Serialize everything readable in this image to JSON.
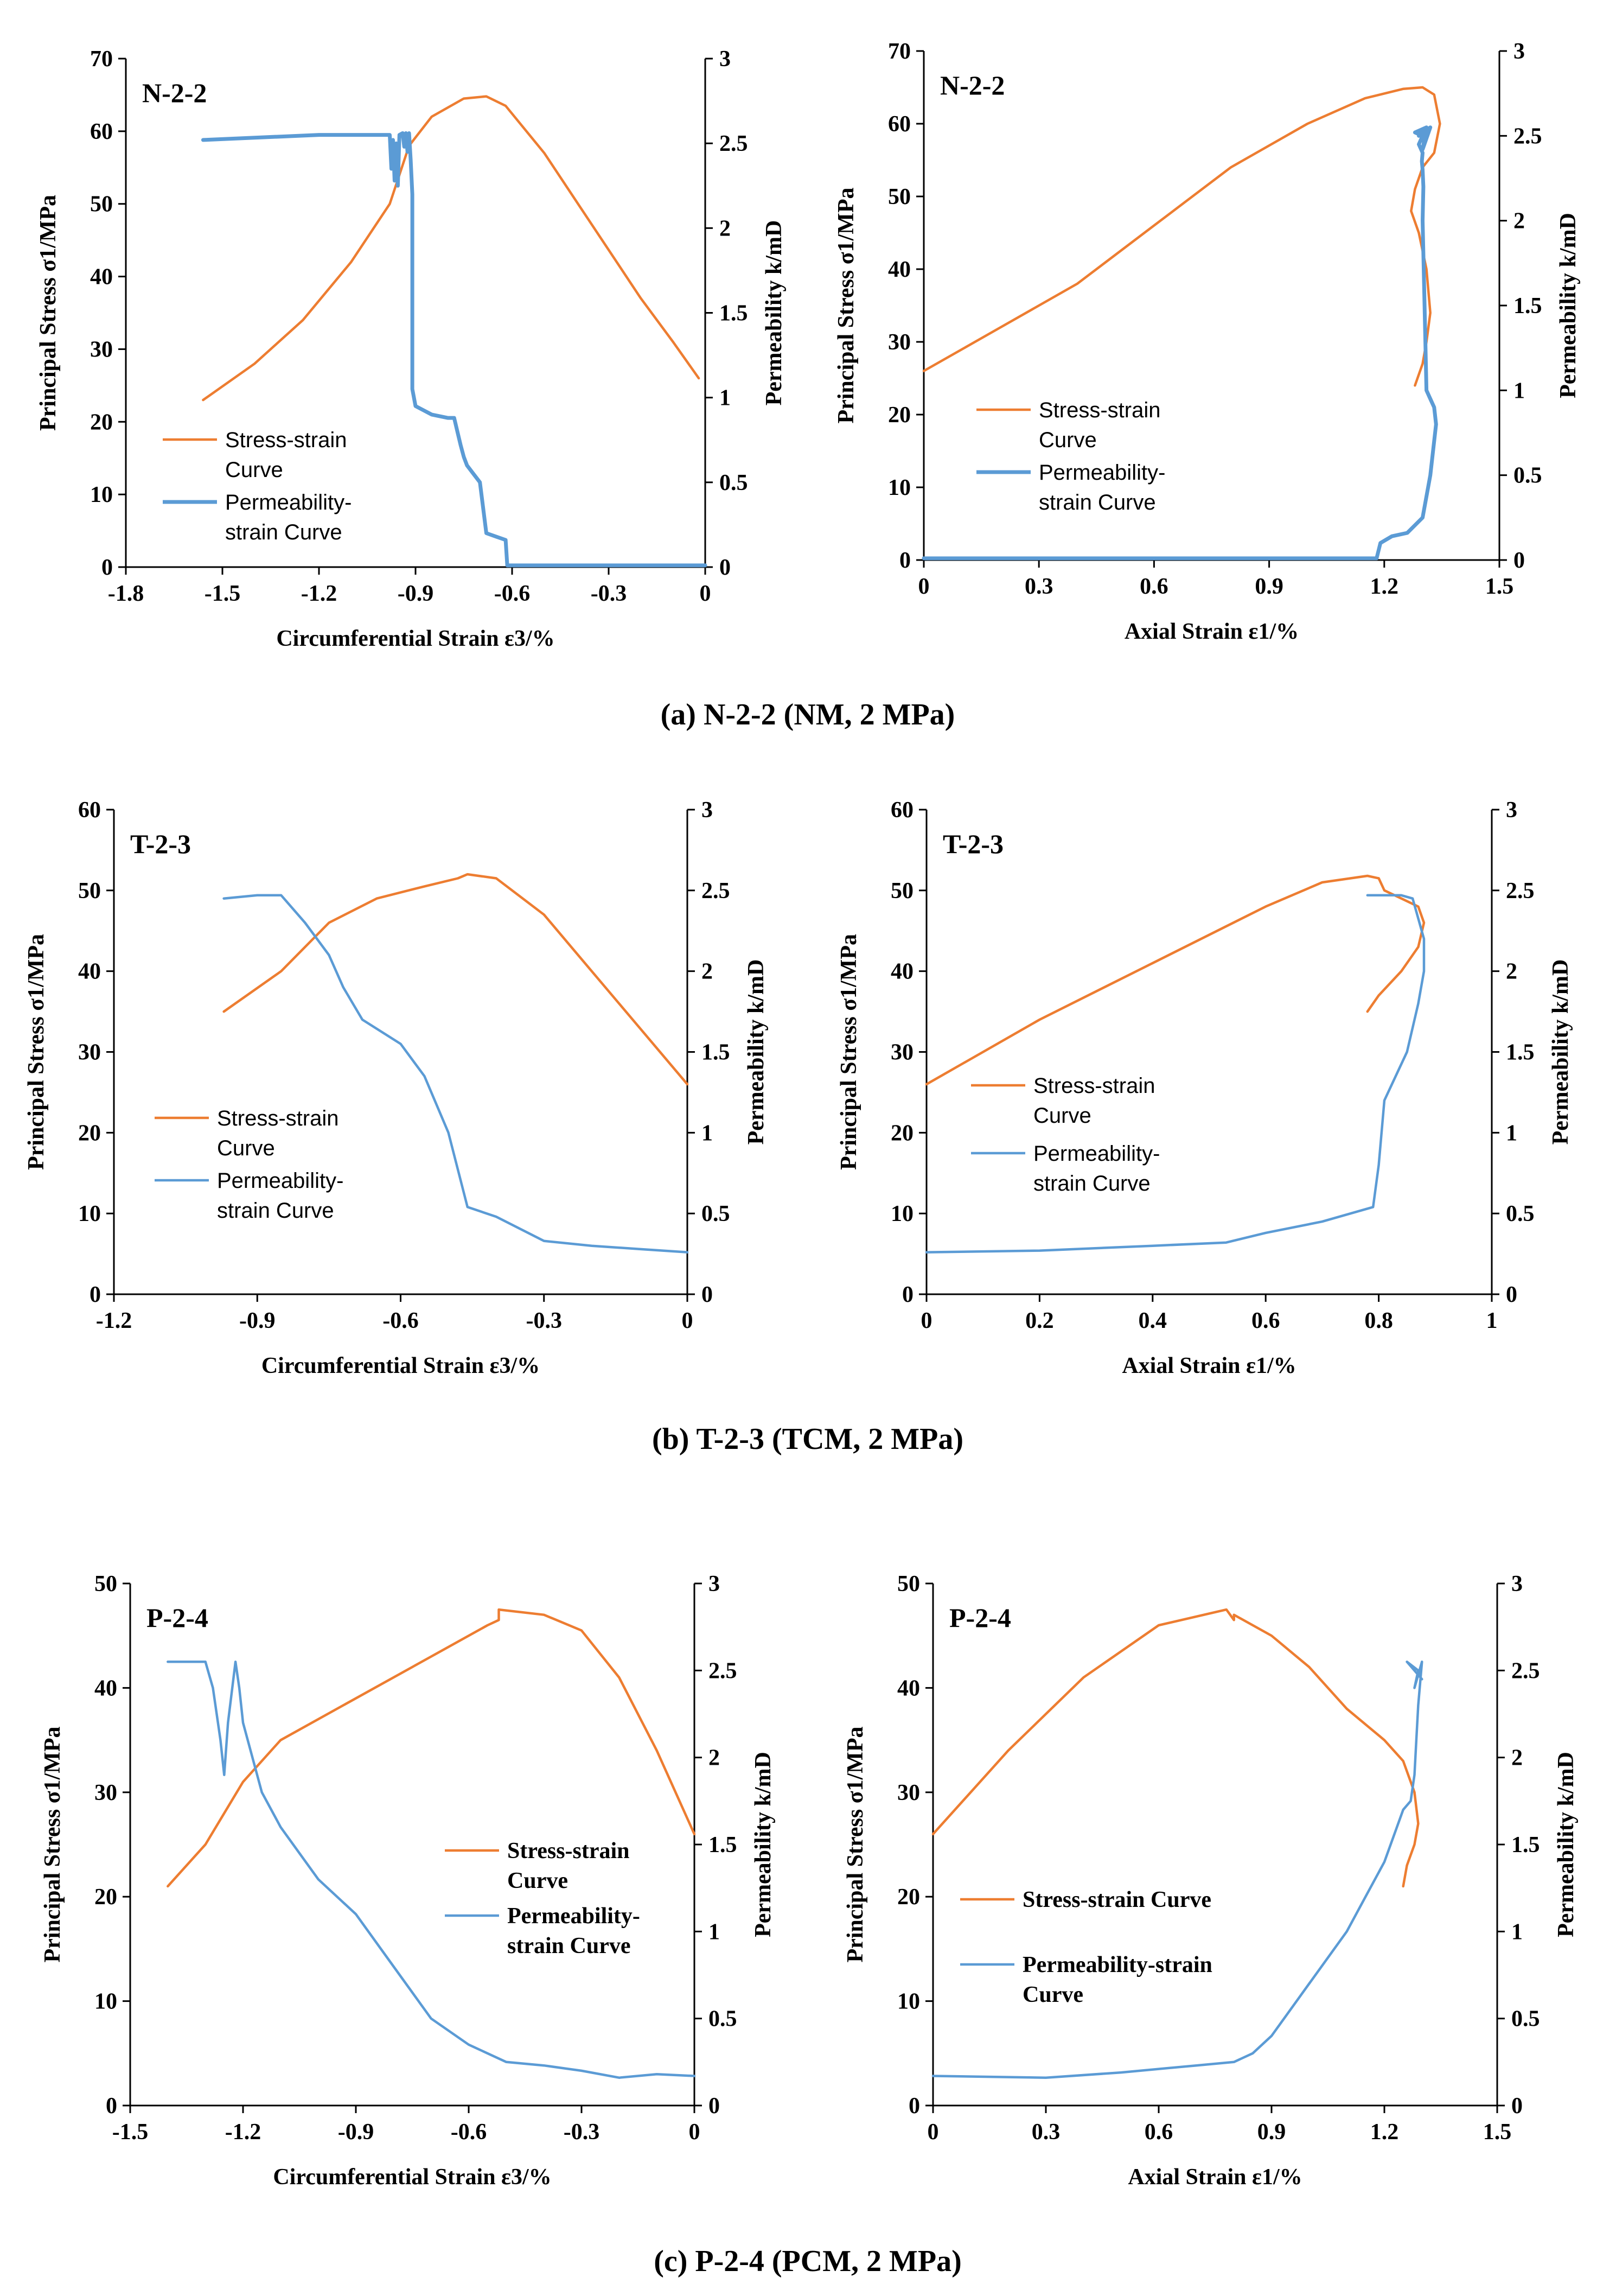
{
  "chart_data": [
    {
      "type": "line",
      "title": "N-2-2",
      "xlabel": "Circumferential Strain ε3/%",
      "ylabel": "Principal Stress σ1/MPa",
      "y2label": "Permeability k/mD",
      "xlim": [
        -1.8,
        0
      ],
      "ylim": [
        0,
        70
      ],
      "y2lim": [
        0,
        3
      ],
      "xticks": [
        -1.8,
        -1.5,
        -1.2,
        -0.9,
        -0.6,
        -0.3,
        0
      ],
      "xtick_labels": [
        "-1.8",
        "-1.5",
        "-1.2",
        "-0.9",
        "-0.6",
        "-0.3",
        "0"
      ],
      "yticks": [
        0,
        10,
        20,
        30,
        40,
        50,
        60,
        70
      ],
      "y2ticks": [
        0,
        0.5,
        1,
        1.5,
        2,
        2.5,
        3
      ],
      "legend_style": "sans",
      "series": [
        {
          "name": "Stress-strain Curve",
          "legend_lines": [
            "Stress-strain",
            "Curve"
          ],
          "axis": "left",
          "color": "#ED7D31",
          "x": [
            -1.56,
            -1.4,
            -1.25,
            -1.1,
            -0.98,
            -0.92,
            -0.85,
            -0.75,
            -0.68,
            -0.62,
            -0.5,
            -0.35,
            -0.2,
            -0.1,
            -0.02
          ],
          "y": [
            23,
            28,
            34,
            42,
            50,
            58,
            62,
            64.5,
            64.8,
            63.5,
            57,
            47,
            37,
            31,
            26
          ]
        },
        {
          "name": "Permeability-strain Curve",
          "legend_lines": [
            "Permeability-",
            "strain Curve"
          ],
          "axis": "right",
          "color": "#5B9BD5",
          "bold": true,
          "x": [
            -1.56,
            -1.2,
            -0.98,
            -0.975,
            -0.97,
            -0.965,
            -0.96,
            -0.955,
            -0.95,
            -0.94,
            -0.935,
            -0.93,
            -0.925,
            -0.92,
            -0.915,
            -0.91,
            -0.91,
            -0.9,
            -0.85,
            -0.8,
            -0.78,
            -0.77,
            -0.76,
            -0.75,
            -0.74,
            -0.72,
            -0.7,
            -0.68,
            -0.65,
            -0.62,
            -0.615,
            -0.5,
            -0.3,
            -0.1,
            0
          ],
          "y": [
            2.52,
            2.55,
            2.55,
            2.35,
            2.52,
            2.28,
            2.5,
            2.25,
            2.55,
            2.56,
            2.48,
            2.56,
            2.45,
            2.56,
            2.4,
            2.2,
            1.05,
            0.95,
            0.9,
            0.88,
            0.88,
            0.8,
            0.72,
            0.65,
            0.6,
            0.55,
            0.5,
            0.2,
            0.18,
            0.16,
            0.01,
            0.01,
            0.01,
            0.01,
            0.01
          ]
        }
      ]
    },
    {
      "type": "line",
      "title": "N-2-2",
      "xlabel": "Axial Strain ε1/%",
      "ylabel": "Principal Stress σ1/MPa",
      "y2label": "Permeability k/mD",
      "xlim": [
        0,
        1.5
      ],
      "ylim": [
        0,
        70
      ],
      "y2lim": [
        0,
        3
      ],
      "xticks": [
        0,
        0.3,
        0.6,
        0.9,
        1.2,
        1.5
      ],
      "xtick_labels": [
        "0",
        "0.3",
        "0.6",
        "0.9",
        "1.2",
        "1.5"
      ],
      "yticks": [
        0,
        10,
        20,
        30,
        40,
        50,
        60,
        70
      ],
      "y2ticks": [
        0,
        0.5,
        1,
        1.5,
        2,
        2.5,
        3
      ],
      "legend_style": "sans",
      "series": [
        {
          "name": "Stress-strain Curve",
          "legend_lines": [
            "Stress-strain",
            "Curve"
          ],
          "axis": "left",
          "color": "#ED7D31",
          "x": [
            0,
            0.2,
            0.4,
            0.6,
            0.8,
            1.0,
            1.15,
            1.25,
            1.3,
            1.33,
            1.345,
            1.33,
            1.3,
            1.28,
            1.27,
            1.29,
            1.31,
            1.32,
            1.31,
            1.3,
            1.28
          ],
          "y": [
            26,
            32,
            38,
            46,
            54,
            60,
            63.5,
            64.8,
            65,
            64,
            60,
            56,
            54,
            51,
            48,
            45,
            40,
            34,
            30,
            27,
            24
          ]
        },
        {
          "name": "Permeability-strain Curve",
          "legend_lines": [
            "Permeability-",
            "strain Curve"
          ],
          "axis": "right",
          "color": "#5B9BD5",
          "bold": true,
          "x": [
            0,
            0.5,
            1.0,
            1.18,
            1.19,
            1.22,
            1.26,
            1.3,
            1.32,
            1.335,
            1.33,
            1.32,
            1.31,
            1.305,
            1.3,
            1.302,
            1.3,
            1.298,
            1.3,
            1.29,
            1.3,
            1.28,
            1.31,
            1.29,
            1.32,
            1.3,
            1.31
          ],
          "y": [
            0.01,
            0.01,
            0.01,
            0.01,
            0.1,
            0.14,
            0.16,
            0.25,
            0.5,
            0.8,
            0.9,
            0.95,
            1.0,
            1.5,
            2.0,
            2.2,
            2.3,
            2.35,
            2.4,
            2.45,
            2.5,
            2.52,
            2.55,
            2.5,
            2.55,
            2.42,
            2.55
          ]
        }
      ]
    },
    {
      "type": "line",
      "title": "T-2-3",
      "xlabel": "Circumferential Strain ε3/%",
      "ylabel": "Principal Stress σ1/MPa",
      "y2label": "Permeability k/mD",
      "xlim": [
        -1.2,
        0
      ],
      "ylim": [
        0,
        60
      ],
      "y2lim": [
        0,
        3
      ],
      "xticks": [
        -1.2,
        -0.9,
        -0.6,
        -0.3,
        0
      ],
      "xtick_labels": [
        "-1.2",
        "-0.9",
        "-0.6",
        "-0.3",
        "0"
      ],
      "yticks": [
        0,
        10,
        20,
        30,
        40,
        50,
        60
      ],
      "y2ticks": [
        0,
        0.5,
        1,
        1.5,
        2,
        2.5,
        3
      ],
      "legend_style": "sans",
      "series": [
        {
          "name": "Stress-strain Curve",
          "legend_lines": [
            "Stress-strain",
            "Curve"
          ],
          "axis": "left",
          "color": "#ED7D31",
          "x": [
            -0.97,
            -0.85,
            -0.75,
            -0.65,
            -0.55,
            -0.48,
            -0.46,
            -0.4,
            -0.3,
            -0.2,
            -0.1,
            0
          ],
          "y": [
            35,
            40,
            46,
            49,
            50.5,
            51.5,
            52,
            51.5,
            47,
            40,
            33,
            26
          ]
        },
        {
          "name": "Permeability-strain Curve",
          "legend_lines": [
            "Permeability-",
            "strain Curve"
          ],
          "axis": "right",
          "color": "#5B9BD5",
          "x": [
            -0.97,
            -0.9,
            -0.85,
            -0.8,
            -0.75,
            -0.72,
            -0.68,
            -0.6,
            -0.55,
            -0.5,
            -0.46,
            -0.4,
            -0.3,
            -0.2,
            -0.1,
            0
          ],
          "y": [
            2.45,
            2.47,
            2.47,
            2.3,
            2.1,
            1.9,
            1.7,
            1.55,
            1.35,
            1.0,
            0.54,
            0.48,
            0.33,
            0.3,
            0.28,
            0.26
          ]
        }
      ]
    },
    {
      "type": "line",
      "title": "T-2-3",
      "xlabel": "Axial Strain ε1/%",
      "ylabel": "Principal Stress σ1/MPa",
      "y2label": "Permeability k/mD",
      "xlim": [
        0,
        1
      ],
      "ylim": [
        0,
        60
      ],
      "y2lim": [
        0,
        3
      ],
      "xticks": [
        0,
        0.2,
        0.4,
        0.6,
        0.8,
        1
      ],
      "xtick_labels": [
        "0",
        "0.2",
        "0.4",
        "0.6",
        "0.8",
        "1"
      ],
      "yticks": [
        0,
        10,
        20,
        30,
        40,
        50,
        60
      ],
      "y2ticks": [
        0,
        0.5,
        1,
        1.5,
        2,
        2.5,
        3
      ],
      "legend_style": "sans",
      "series": [
        {
          "name": "Stress-strain Curve",
          "legend_lines": [
            "Stress-strain",
            "Curve"
          ],
          "axis": "left",
          "color": "#ED7D31",
          "x": [
            0,
            0.2,
            0.4,
            0.6,
            0.7,
            0.78,
            0.8,
            0.81,
            0.84,
            0.87,
            0.88,
            0.87,
            0.84,
            0.8,
            0.78
          ],
          "y": [
            26,
            34,
            41,
            48,
            51,
            51.8,
            51.5,
            50,
            49,
            48,
            46,
            43,
            40,
            37,
            35
          ]
        },
        {
          "name": "Permeability-strain Curve",
          "legend_lines": [
            "Permeability-",
            "strain Curve"
          ],
          "axis": "right",
          "color": "#5B9BD5",
          "x": [
            0,
            0.2,
            0.4,
            0.53,
            0.6,
            0.7,
            0.79,
            0.8,
            0.81,
            0.85,
            0.87,
            0.88,
            0.88,
            0.86,
            0.84,
            0.78
          ],
          "y": [
            0.26,
            0.27,
            0.3,
            0.32,
            0.38,
            0.45,
            0.54,
            0.8,
            1.2,
            1.5,
            1.8,
            2.0,
            2.2,
            2.45,
            2.47,
            2.47
          ]
        }
      ]
    },
    {
      "type": "line",
      "title": "P-2-4",
      "xlabel": "Circumferential Strain ε3/%",
      "ylabel": "Principal Stress σ1/MPa",
      "y2label": "Permeability k/mD",
      "xlim": [
        -1.5,
        0
      ],
      "ylim": [
        0,
        50
      ],
      "y2lim": [
        0,
        3
      ],
      "xticks": [
        -1.5,
        -1.2,
        -0.9,
        -0.6,
        -0.3,
        0
      ],
      "xtick_labels": [
        "-1.5",
        "-1.2",
        "-0.9",
        "-0.6",
        "-0.3",
        "0"
      ],
      "yticks": [
        0,
        10,
        20,
        30,
        40,
        50
      ],
      "y2ticks": [
        0,
        0.5,
        1,
        1.5,
        2,
        2.5,
        3
      ],
      "legend_style": "serif",
      "series": [
        {
          "name": "Stress-strain Curve",
          "legend_lines": [
            "Stress-strain",
            "Curve"
          ],
          "axis": "left",
          "color": "#ED7D31",
          "x": [
            -1.4,
            -1.3,
            -1.2,
            -1.1,
            -0.9,
            -0.7,
            -0.55,
            -0.52,
            -0.52,
            -0.4,
            -0.3,
            -0.2,
            -0.1,
            0
          ],
          "y": [
            21,
            25,
            31,
            35,
            39,
            43,
            46,
            46.5,
            47.5,
            47,
            45.5,
            41,
            34,
            26
          ]
        },
        {
          "name": "Permeability-strain Curve",
          "legend_lines": [
            "Permeability-",
            "strain Curve"
          ],
          "axis": "right",
          "color": "#5B9BD5",
          "x": [
            -1.4,
            -1.3,
            -1.28,
            -1.26,
            -1.25,
            -1.24,
            -1.22,
            -1.21,
            -1.2,
            -1.15,
            -1.1,
            -1.0,
            -0.9,
            -0.8,
            -0.7,
            -0.6,
            -0.5,
            -0.4,
            -0.3,
            -0.2,
            -0.1,
            0
          ],
          "y": [
            2.55,
            2.55,
            2.4,
            2.1,
            1.9,
            2.2,
            2.55,
            2.4,
            2.2,
            1.8,
            1.6,
            1.3,
            1.1,
            0.8,
            0.5,
            0.35,
            0.25,
            0.23,
            0.2,
            0.16,
            0.18,
            0.17
          ]
        }
      ]
    },
    {
      "type": "line",
      "title": "P-2-4",
      "xlabel": "Axial Strain ε1/%",
      "ylabel": "Principal Stress σ1/MPa",
      "y2label": "Permeability k/mD",
      "xlim": [
        0,
        1.5
      ],
      "ylim": [
        0,
        50
      ],
      "y2lim": [
        0,
        3
      ],
      "xticks": [
        0,
        0.3,
        0.6,
        0.9,
        1.2,
        1.5
      ],
      "xtick_labels": [
        "0",
        "0.3",
        "0.6",
        "0.9",
        "1.2",
        "1.5"
      ],
      "yticks": [
        0,
        10,
        20,
        30,
        40,
        50
      ],
      "y2ticks": [
        0,
        0.5,
        1,
        1.5,
        2,
        2.5,
        3
      ],
      "legend_style": "serif",
      "series": [
        {
          "name": "Stress-strain Curve",
          "legend_lines": [
            "Stress-strain Curve"
          ],
          "axis": "left",
          "color": "#ED7D31",
          "x": [
            0,
            0.2,
            0.4,
            0.6,
            0.78,
            0.8,
            0.8,
            0.9,
            1.0,
            1.1,
            1.2,
            1.25,
            1.28,
            1.29,
            1.28,
            1.26,
            1.25
          ],
          "y": [
            26,
            34,
            41,
            46,
            47.5,
            46.5,
            47,
            45,
            42,
            38,
            35,
            33,
            30,
            27,
            25,
            23,
            21
          ]
        },
        {
          "name": "Permeability-strain Curve",
          "legend_lines": [
            "Permeability-strain",
            "Curve"
          ],
          "axis": "right",
          "color": "#5B9BD5",
          "x": [
            0,
            0.3,
            0.5,
            0.7,
            0.8,
            0.85,
            0.9,
            0.95,
            1.0,
            1.05,
            1.1,
            1.15,
            1.2,
            1.25,
            1.27,
            1.28,
            1.285,
            1.29,
            1.3,
            1.28,
            1.29,
            1.26,
            1.3
          ],
          "y": [
            0.17,
            0.16,
            0.19,
            0.23,
            0.25,
            0.3,
            0.4,
            0.55,
            0.7,
            0.85,
            1.0,
            1.2,
            1.4,
            1.7,
            1.75,
            1.9,
            2.1,
            2.3,
            2.55,
            2.4,
            2.5,
            2.55,
            2.45
          ]
        }
      ]
    }
  ],
  "captions": [
    "(a) N-2-2 (NM, 2 MPa)",
    "(b) T-2-3 (TCM, 2 MPa)",
    "(c) P-2-4 (PCM, 2 MPa)"
  ]
}
